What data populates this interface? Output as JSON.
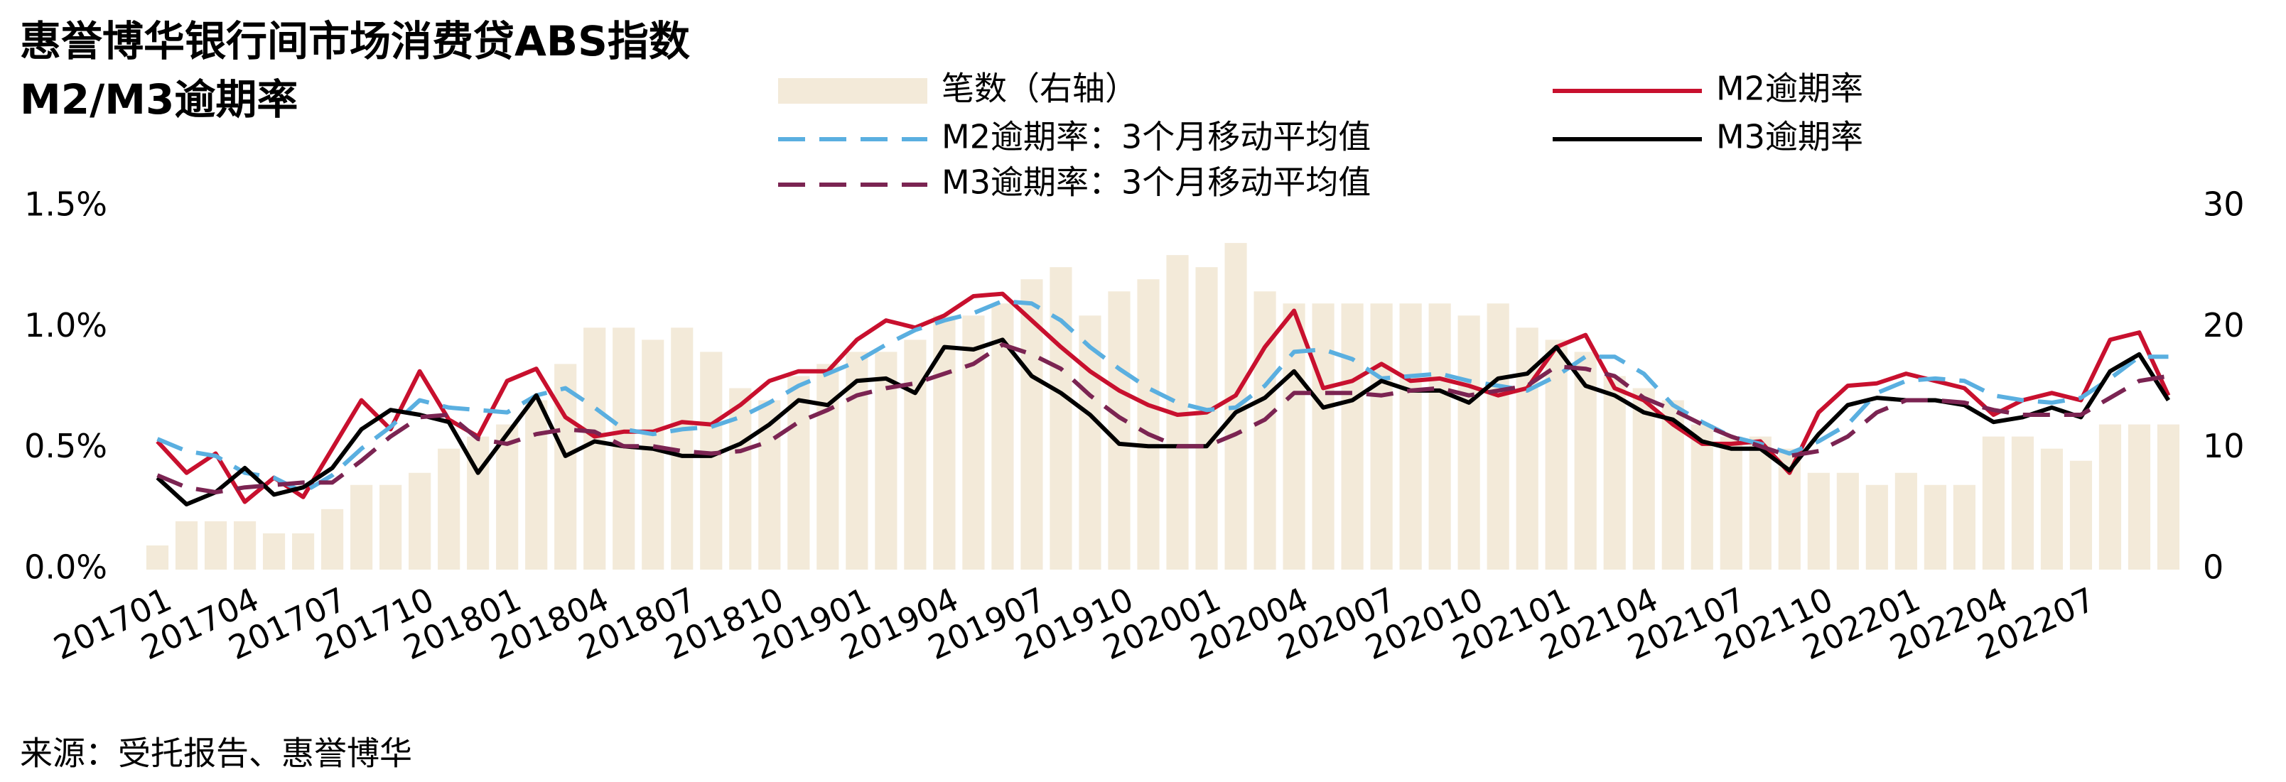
{
  "chart_data": {
    "type": "bar-line",
    "title": [
      "惠誉博华银行间市场消费贷ABS指数",
      "M2/M3逾期率"
    ],
    "source": "来源：受托报告、惠誉博华",
    "categories": [
      "201701",
      null,
      null,
      "201704",
      null,
      null,
      "201707",
      null,
      null,
      "201710",
      null,
      null,
      "201801",
      null,
      null,
      "201804",
      null,
      null,
      "201807",
      null,
      null,
      "201810",
      null,
      null,
      "201901",
      null,
      null,
      "201904",
      null,
      null,
      "201907",
      null,
      null,
      "201910",
      null,
      null,
      "202001",
      null,
      null,
      "202004",
      null,
      null,
      "202007",
      null,
      null,
      "202010",
      null,
      null,
      "202101",
      null,
      null,
      "202104",
      null,
      null,
      "202107",
      null,
      null,
      "202110",
      null,
      null,
      "202201",
      null,
      null,
      "202204",
      null,
      null,
      "202207",
      null,
      null,
      null
    ],
    "series": [
      {
        "name": "笔数（右轴）",
        "type": "bar",
        "axis": "y2",
        "color": "#f3ead9",
        "values": [
          2,
          4,
          4,
          4,
          3,
          3,
          5,
          7,
          7,
          8,
          10,
          11,
          12,
          14,
          17,
          20,
          20,
          19,
          20,
          18,
          15,
          14,
          16,
          17,
          18,
          18,
          19,
          21,
          21,
          22,
          24,
          25,
          21,
          23,
          24,
          26,
          25,
          27,
          23,
          22,
          22,
          22,
          22,
          22,
          22,
          21,
          22,
          20,
          19,
          18,
          16,
          15,
          14,
          12,
          11,
          11,
          10,
          8,
          8,
          7,
          8,
          7,
          7,
          11,
          11,
          10,
          9,
          12,
          12,
          12
        ]
      },
      {
        "name": "M2逾期率",
        "type": "line",
        "color": "#c8102e",
        "dash": false,
        "values": [
          0.53,
          0.4,
          0.48,
          0.28,
          0.38,
          0.3,
          0.5,
          0.7,
          0.58,
          0.82,
          0.62,
          0.55,
          0.78,
          0.83,
          0.63,
          0.55,
          0.57,
          0.57,
          0.61,
          0.6,
          0.68,
          0.78,
          0.82,
          0.82,
          0.95,
          1.03,
          1.0,
          1.05,
          1.13,
          1.14,
          1.03,
          0.92,
          0.82,
          0.74,
          0.68,
          0.64,
          0.65,
          0.72,
          0.92,
          1.07,
          0.75,
          0.78,
          0.85,
          0.78,
          0.79,
          0.76,
          0.72,
          0.75,
          0.92,
          0.97,
          0.75,
          0.7,
          0.6,
          0.52,
          0.52,
          0.53,
          0.4,
          0.65,
          0.76,
          0.77,
          0.81,
          0.78,
          0.75,
          0.64,
          0.7,
          0.73,
          0.7,
          0.95,
          0.98,
          0.72
        ]
      },
      {
        "name": "M2逾期率：3个月移动平均值",
        "type": "line",
        "color": "#5aafe0",
        "dash": true,
        "values": [
          0.54,
          0.49,
          0.47,
          0.4,
          0.38,
          0.32,
          0.39,
          0.5,
          0.59,
          0.7,
          0.67,
          0.66,
          0.65,
          0.72,
          0.75,
          0.67,
          0.58,
          0.56,
          0.58,
          0.59,
          0.63,
          0.69,
          0.76,
          0.81,
          0.86,
          0.93,
          0.99,
          1.03,
          1.06,
          1.11,
          1.1,
          1.03,
          0.92,
          0.83,
          0.75,
          0.69,
          0.66,
          0.67,
          0.76,
          0.9,
          0.91,
          0.87,
          0.79,
          0.8,
          0.81,
          0.78,
          0.76,
          0.74,
          0.8,
          0.88,
          0.88,
          0.81,
          0.68,
          0.61,
          0.55,
          0.52,
          0.48,
          0.53,
          0.6,
          0.73,
          0.78,
          0.79,
          0.78,
          0.72,
          0.7,
          0.69,
          0.71,
          0.79,
          0.88,
          0.88
        ]
      },
      {
        "name": "M3逾期率",
        "type": "line",
        "color": "#000000",
        "dash": false,
        "values": [
          0.38,
          0.27,
          0.32,
          0.42,
          0.31,
          0.34,
          0.42,
          0.58,
          0.66,
          0.64,
          0.61,
          0.4,
          0.56,
          0.72,
          0.47,
          0.53,
          0.51,
          0.5,
          0.47,
          0.47,
          0.52,
          0.6,
          0.7,
          0.68,
          0.78,
          0.79,
          0.73,
          0.92,
          0.91,
          0.95,
          0.8,
          0.73,
          0.64,
          0.52,
          0.51,
          0.51,
          0.51,
          0.65,
          0.71,
          0.82,
          0.67,
          0.7,
          0.78,
          0.74,
          0.74,
          0.69,
          0.79,
          0.81,
          0.92,
          0.76,
          0.72,
          0.65,
          0.62,
          0.53,
          0.5,
          0.5,
          0.41,
          0.56,
          0.68,
          0.71,
          0.7,
          0.7,
          0.68,
          0.61,
          0.63,
          0.67,
          0.63,
          0.82,
          0.89,
          0.7
        ]
      },
      {
        "name": "M3逾期率：3个月移动平均值",
        "type": "line",
        "color": "#7b2452",
        "dash": true,
        "values": [
          0.39,
          0.34,
          0.32,
          0.34,
          0.35,
          0.36,
          0.36,
          0.45,
          0.55,
          0.63,
          0.64,
          0.54,
          0.52,
          0.56,
          0.58,
          0.57,
          0.51,
          0.51,
          0.49,
          0.48,
          0.49,
          0.53,
          0.61,
          0.66,
          0.72,
          0.75,
          0.77,
          0.81,
          0.85,
          0.93,
          0.89,
          0.83,
          0.72,
          0.63,
          0.56,
          0.51,
          0.51,
          0.56,
          0.62,
          0.73,
          0.73,
          0.73,
          0.72,
          0.74,
          0.75,
          0.72,
          0.74,
          0.76,
          0.84,
          0.83,
          0.8,
          0.71,
          0.66,
          0.6,
          0.55,
          0.51,
          0.47,
          0.49,
          0.55,
          0.65,
          0.7,
          0.7,
          0.69,
          0.66,
          0.64,
          0.64,
          0.64,
          0.71,
          0.78,
          0.8
        ]
      }
    ],
    "ylim": [
      0,
      1.5
    ],
    "yticks": [
      {
        "value": 0,
        "label": "0.0%"
      },
      {
        "value": 0.5,
        "label": "0.5%"
      },
      {
        "value": 1.0,
        "label": "1.0%"
      },
      {
        "value": 1.5,
        "label": "1.5%"
      }
    ],
    "y2lim": [
      0,
      30
    ],
    "y2ticks": [
      0,
      10,
      20,
      30
    ],
    "grid": false
  }
}
